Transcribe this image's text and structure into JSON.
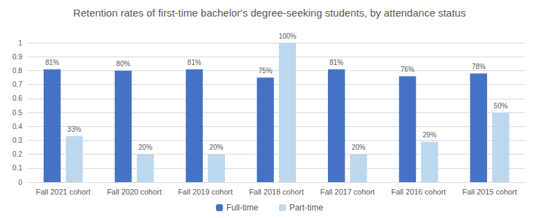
{
  "chart_data": {
    "type": "bar",
    "title": "Retention rates of first-time bachelor's degree-seeking students, by attendance status",
    "categories": [
      "Fall 2021 cohort",
      "Fall 2020 cohort",
      "Fall 2019 cohort",
      "Fall 2018 cohort",
      "Fall 2017 cohort",
      "Fall 2016 cohort",
      "Fall 2015 cohort"
    ],
    "series": [
      {
        "name": "Full-time",
        "color": "#4472c4",
        "values": [
          0.81,
          0.8,
          0.81,
          0.75,
          0.81,
          0.76,
          0.78
        ],
        "value_labels": [
          "81%",
          "80%",
          "81%",
          "75%",
          "81%",
          "76%",
          "78%"
        ]
      },
      {
        "name": "Part-time",
        "color": "#bdd7ee",
        "values": [
          0.33,
          0.2,
          0.2,
          1.0,
          0.2,
          0.29,
          0.5
        ],
        "value_labels": [
          "33%",
          "20%",
          "20%",
          "100%",
          "20%",
          "29%",
          "50%"
        ]
      }
    ],
    "ylim": [
      0,
      1
    ],
    "yticks": [
      0,
      0.1,
      0.2,
      0.3,
      0.4,
      0.5,
      0.6,
      0.7,
      0.8,
      0.9,
      1
    ],
    "grid": true,
    "legend": "bottom",
    "data_labels": true
  }
}
